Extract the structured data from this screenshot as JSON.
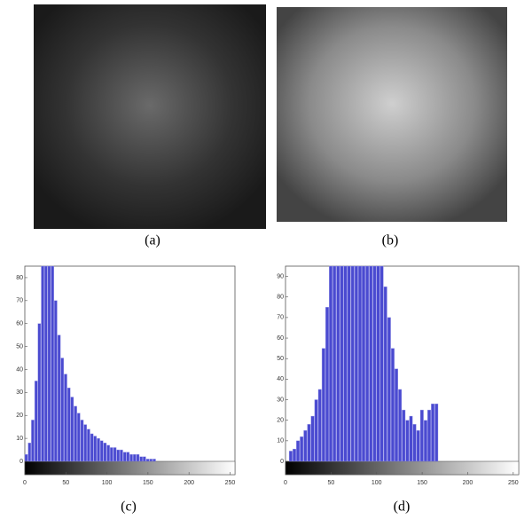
{
  "figure": {
    "panels": [
      {
        "label": "(a)"
      },
      {
        "label": "(b)"
      },
      {
        "label": "(c)"
      },
      {
        "label": "(d)"
      }
    ]
  },
  "chart_data": [
    {
      "type": "histogram",
      "color": "#4a4ad0",
      "bins": [
        0,
        4,
        8,
        12,
        16,
        20,
        24,
        28,
        32,
        36,
        40,
        44,
        48,
        52,
        56,
        60,
        64,
        68,
        72,
        76,
        80,
        84,
        88,
        92,
        96,
        100,
        104,
        108,
        112,
        116,
        120,
        124,
        128,
        132,
        136,
        140,
        144,
        148,
        152,
        156,
        160,
        164,
        168,
        172,
        176,
        180,
        184,
        188,
        192,
        196,
        200,
        204,
        208,
        212,
        216,
        220,
        224,
        228,
        232,
        236,
        240,
        244,
        248,
        252,
        256
      ],
      "values": [
        3,
        8,
        18,
        35,
        60,
        85,
        85,
        85,
        85,
        70,
        55,
        45,
        38,
        32,
        28,
        24,
        21,
        18,
        16,
        14,
        12,
        11,
        10,
        9,
        8,
        7,
        6,
        6,
        5,
        5,
        4,
        4,
        3,
        3,
        3,
        2,
        2,
        1,
        1,
        1,
        0,
        0,
        0,
        0,
        0,
        0,
        0,
        0,
        0,
        0,
        0,
        0,
        0,
        0,
        0,
        0,
        0,
        0,
        0,
        0,
        0,
        0,
        0,
        0
      ],
      "xlim": [
        0,
        256
      ],
      "xticks": [
        0,
        50,
        100,
        150,
        200,
        250
      ],
      "ylim": [
        0,
        85
      ],
      "yticks": [
        0,
        10,
        20,
        30,
        40,
        50,
        60,
        70,
        80
      ]
    },
    {
      "type": "histogram",
      "color": "#4a4ad0",
      "bins": [
        0,
        4,
        8,
        12,
        16,
        20,
        24,
        28,
        32,
        36,
        40,
        44,
        48,
        52,
        56,
        60,
        64,
        68,
        72,
        76,
        80,
        84,
        88,
        92,
        96,
        100,
        104,
        108,
        112,
        116,
        120,
        124,
        128,
        132,
        136,
        140,
        144,
        148,
        152,
        156,
        160,
        164,
        168,
        172,
        176,
        180,
        184,
        188,
        192,
        196,
        200,
        204,
        208,
        212,
        216,
        220,
        224,
        228,
        232,
        236,
        240,
        244,
        248,
        252,
        256
      ],
      "values": [
        0,
        5,
        6,
        10,
        12,
        15,
        18,
        22,
        30,
        35,
        55,
        75,
        95,
        95,
        95,
        95,
        95,
        95,
        95,
        95,
        95,
        95,
        95,
        95,
        95,
        95,
        95,
        85,
        70,
        55,
        45,
        35,
        25,
        20,
        22,
        18,
        15,
        25,
        20,
        25,
        28,
        28,
        0,
        0,
        0,
        0,
        0,
        0,
        0,
        0,
        0,
        0,
        0,
        0,
        0,
        0,
        0,
        0,
        0,
        0,
        0,
        0,
        0,
        0
      ],
      "xlim": [
        0,
        256
      ],
      "xticks": [
        0,
        50,
        100,
        150,
        200,
        250
      ],
      "ylim": [
        0,
        95
      ],
      "yticks": [
        0,
        10,
        20,
        30,
        40,
        50,
        60,
        70,
        80,
        90
      ]
    }
  ]
}
